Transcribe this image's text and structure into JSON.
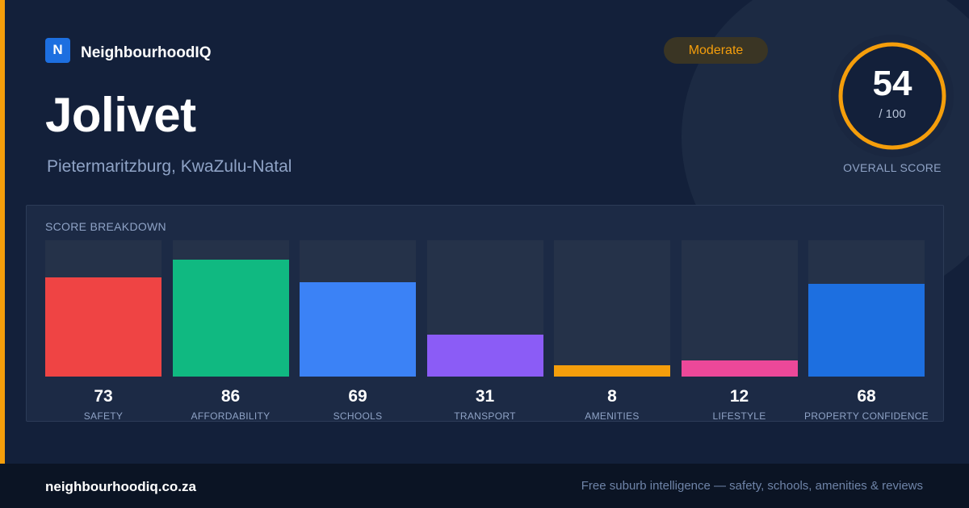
{
  "brand": {
    "logo_letter": "N",
    "name": "NeighbourhoodIQ",
    "accent_color": "#f59e0b",
    "logo_color": "#1d6fe0"
  },
  "suburb": {
    "name": "Jolivet",
    "location": "Pietermaritzburg, KwaZulu-Natal"
  },
  "rating_badge": {
    "label": "Moderate",
    "color": "#f59e0b"
  },
  "overall": {
    "score": 54,
    "max_label": "/ 100",
    "caption": "OVERALL SCORE",
    "ring_color": "#f59e0b"
  },
  "breakdown": {
    "title": "SCORE BREAKDOWN"
  },
  "chart_data": {
    "type": "bar",
    "categories": [
      "SAFETY",
      "AFFORDABILITY",
      "SCHOOLS",
      "TRANSPORT",
      "AMENITIES",
      "LIFESTYLE",
      "PROPERTY CONFIDENCE"
    ],
    "values": [
      73,
      86,
      69,
      31,
      8,
      12,
      68
    ],
    "colors": [
      "#ef4444",
      "#10b981",
      "#3b82f6",
      "#8b5cf6",
      "#f59e0b",
      "#ec4899",
      "#1d6fe0"
    ],
    "ylim": [
      0,
      100
    ],
    "grid": false
  },
  "footer": {
    "url": "neighbourhoodiq.co.za",
    "tagline": "Free suburb intelligence — safety, schools, amenities & reviews"
  }
}
